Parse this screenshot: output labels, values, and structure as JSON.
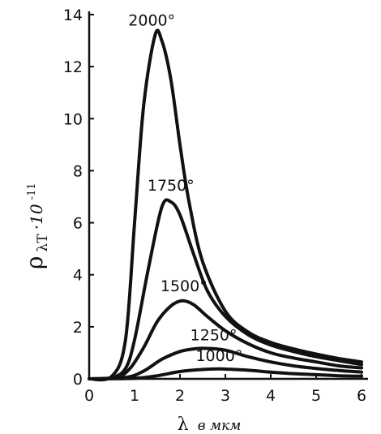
{
  "chart_data": {
    "type": "line",
    "xlabel": {
      "symbol": "λ",
      "unit": "в мкм"
    },
    "ylabel": {
      "main": "ρ",
      "sub": "λT",
      "rest": "·10",
      "exp": "-11"
    },
    "xlim": [
      0,
      6
    ],
    "ylim": [
      0,
      14
    ],
    "x_ticks": [
      "0",
      "1",
      "2",
      "3",
      "4",
      "5",
      "6"
    ],
    "y_ticks": [
      "0",
      "2",
      "4",
      "6",
      "8",
      "10",
      "12",
      "14"
    ],
    "grid": false,
    "series": [
      {
        "name": "2000°",
        "x": [
          0,
          0.5,
          0.8,
          1.0,
          1.2,
          1.45,
          1.6,
          1.8,
          2.0,
          2.2,
          2.5,
          3.0,
          3.5,
          4.0,
          4.5,
          5.0,
          5.5,
          6.0
        ],
        "y": [
          0,
          0.1,
          1.5,
          6.0,
          10.5,
          13.2,
          13.0,
          11.5,
          9.0,
          6.8,
          4.5,
          2.6,
          1.8,
          1.4,
          1.15,
          0.95,
          0.78,
          0.65
        ]
      },
      {
        "name": "1750°",
        "x": [
          0,
          0.5,
          0.8,
          1.0,
          1.3,
          1.6,
          1.8,
          2.0,
          2.3,
          2.6,
          3.0,
          3.5,
          4.0,
          4.5,
          5.0,
          5.5,
          6.0
        ],
        "y": [
          0,
          0.05,
          0.4,
          1.5,
          4.2,
          6.6,
          6.8,
          6.3,
          4.8,
          3.4,
          2.4,
          1.7,
          1.3,
          1.05,
          0.85,
          0.7,
          0.55
        ]
      },
      {
        "name": "1500°",
        "x": [
          0,
          0.6,
          0.9,
          1.2,
          1.5,
          1.8,
          2.05,
          2.3,
          2.6,
          3.0,
          3.5,
          4.0,
          4.5,
          5.0,
          5.5,
          6.0
        ],
        "y": [
          0,
          0.05,
          0.4,
          1.2,
          2.2,
          2.8,
          3.0,
          2.85,
          2.4,
          1.85,
          1.35,
          1.0,
          0.8,
          0.65,
          0.5,
          0.42
        ]
      },
      {
        "name": "1250°",
        "x": [
          0,
          0.8,
          1.2,
          1.6,
          2.0,
          2.3,
          2.6,
          3.0,
          3.5,
          4.0,
          4.5,
          5.0,
          5.5,
          6.0
        ],
        "y": [
          0,
          0.05,
          0.3,
          0.75,
          1.05,
          1.15,
          1.17,
          1.1,
          0.85,
          0.65,
          0.5,
          0.4,
          0.32,
          0.26
        ]
      },
      {
        "name": "1000°",
        "x": [
          0,
          1.0,
          1.5,
          2.0,
          2.5,
          2.9,
          3.5,
          4.0,
          4.5,
          5.0,
          5.5,
          6.0
        ],
        "y": [
          0,
          0.02,
          0.12,
          0.28,
          0.36,
          0.38,
          0.33,
          0.26,
          0.2,
          0.16,
          0.12,
          0.1
        ]
      }
    ]
  }
}
